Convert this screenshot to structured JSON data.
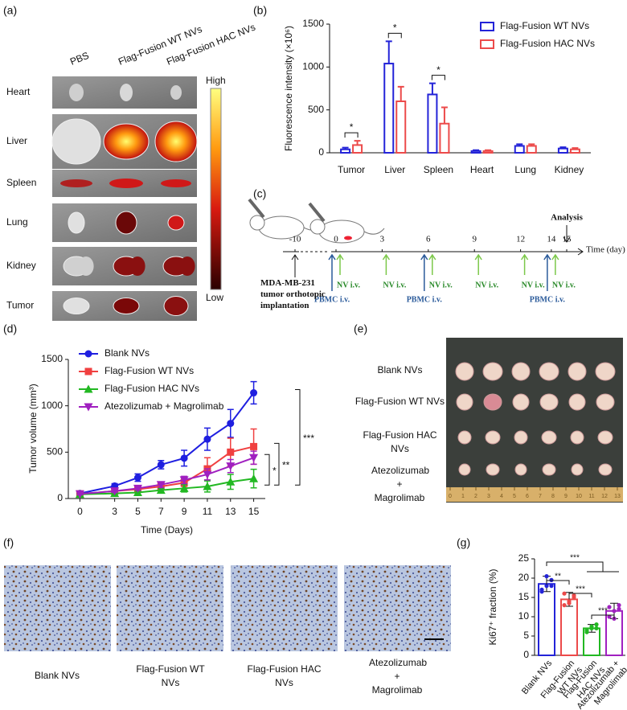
{
  "panels": {
    "a": {
      "label": "(a)",
      "columns": [
        "PBS",
        "Flag-Fusion WT NVs",
        "Flag-Fusion HAC NVs"
      ],
      "rows": [
        "Heart",
        "Liver",
        "Spleen",
        "Lung",
        "Kidney",
        "Tumor"
      ],
      "colorbar_high": "High",
      "colorbar_low": "Low"
    },
    "c": {
      "label": "(c)",
      "days": [
        -10,
        0,
        3,
        6,
        9,
        12,
        14,
        15
      ],
      "axis_label": "Time (day)",
      "analysis": "Analysis",
      "analysis_day": 15,
      "implantation": "MDA-MB-231 tumor orthotopic implantation",
      "implantation_day": -10,
      "nv_label": "NV i.v.",
      "nv_days": [
        0,
        3,
        6,
        9,
        12,
        14
      ],
      "pbmc_label": "PBMC i.v.",
      "pbmc_days": [
        0,
        6,
        14
      ]
    },
    "e": {
      "label": "(e)",
      "groups": [
        "Blank NVs",
        "Flag-Fusion WT NVs",
        "Flag-Fusion HAC NVs",
        "Atezolizumab + Magrolimab"
      ],
      "ruler": [
        0,
        1,
        2,
        3,
        4,
        5,
        6,
        7,
        8,
        9,
        10,
        11,
        12,
        13
      ]
    },
    "f": {
      "label": "(f)",
      "groups": [
        "Blank NVs",
        "Flag-Fusion WT NVs",
        "Flag-Fusion HAC NVs",
        "Atezolizumab + Magrolimab"
      ]
    }
  },
  "chart_data": [
    {
      "type": "bar",
      "label": "(b)",
      "y_label": "Fluorescence intensity (×10⁶)",
      "categories": [
        "Tumor",
        "Liver",
        "Spleen",
        "Heart",
        "Lung",
        "Kidney"
      ],
      "series": [
        {
          "name": "Flag-Fusion WT NVs",
          "color": "#2323d8",
          "values": [
            40,
            1040,
            680,
            20,
            80,
            50
          ],
          "errors": [
            20,
            260,
            130,
            10,
            20,
            15
          ]
        },
        {
          "name": "Flag-Fusion HAC NVs",
          "color": "#ec4a4a",
          "values": [
            90,
            600,
            340,
            20,
            80,
            40
          ],
          "errors": [
            50,
            170,
            190,
            10,
            20,
            15
          ]
        }
      ],
      "ylim": [
        0,
        1500
      ],
      "yticks": [
        0,
        500,
        1000,
        1500
      ],
      "significance": [
        "*",
        "*",
        "*"
      ]
    },
    {
      "type": "line",
      "label": "(d)",
      "x_label": "Time (Days)",
      "y_label": "Tumor volume (mm³)",
      "x": [
        0,
        3,
        5,
        7,
        9,
        11,
        13,
        15
      ],
      "series": [
        {
          "name": "Blank NVs",
          "color": "#1f1fe0",
          "marker": "circle",
          "values": [
            55,
            135,
            225,
            365,
            435,
            640,
            810,
            1140
          ],
          "errors": [
            10,
            25,
            40,
            45,
            85,
            120,
            150,
            120
          ]
        },
        {
          "name": "Flag-Fusion WT NVs",
          "color": "#f04040",
          "marker": "square",
          "values": [
            50,
            80,
            100,
            130,
            170,
            320,
            500,
            560
          ],
          "errors": [
            10,
            20,
            20,
            30,
            40,
            120,
            150,
            190
          ]
        },
        {
          "name": "Flag-Fusion HAC NVs",
          "color": "#22b822",
          "marker": "triangle-up",
          "values": [
            45,
            55,
            65,
            90,
            110,
            130,
            180,
            215
          ],
          "errors": [
            10,
            10,
            20,
            20,
            40,
            60,
            80,
            100
          ]
        },
        {
          "name": "Atezolizumab + Magrolimab",
          "color": "#a020c0",
          "marker": "triangle-down",
          "values": [
            50,
            80,
            110,
            150,
            200,
            260,
            350,
            440
          ],
          "errors": [
            10,
            15,
            20,
            30,
            40,
            60,
            70,
            70
          ]
        }
      ],
      "xlim": [
        -1,
        16
      ],
      "xticks": [
        0,
        3,
        5,
        7,
        9,
        11,
        13,
        15
      ],
      "ylim": [
        0,
        1500
      ],
      "yticks": [
        0,
        500,
        1000,
        1500
      ],
      "significance": [
        "*",
        "**",
        "***"
      ]
    },
    {
      "type": "dotbar",
      "label": "(g)",
      "y_label": "Ki67⁺ fraction (%)",
      "categories": [
        "Blank NVs",
        "Flag-Fusion WT NVs",
        "Flag-Fusion HAC NVs",
        "Atezolizumab + Magrolimab"
      ],
      "colors": [
        "#2323d8",
        "#ec4a4a",
        "#22b822",
        "#a020c0"
      ],
      "values": [
        18.5,
        14.5,
        7,
        11.5
      ],
      "errors": [
        2,
        1.8,
        1,
        2
      ],
      "points": [
        [
          17,
          18,
          19.5,
          16.5,
          20.5,
          18
        ],
        [
          13,
          14,
          15,
          16,
          13.5,
          15.5
        ],
        [
          6,
          7,
          8,
          6.5,
          7.5,
          7
        ],
        [
          10,
          11.5,
          13,
          12.5,
          9.5,
          12
        ]
      ],
      "ylim": [
        0,
        25
      ],
      "yticks": [
        0,
        5,
        10,
        15,
        20,
        25
      ],
      "significance": [
        "**",
        "***",
        "***",
        "***"
      ]
    }
  ]
}
